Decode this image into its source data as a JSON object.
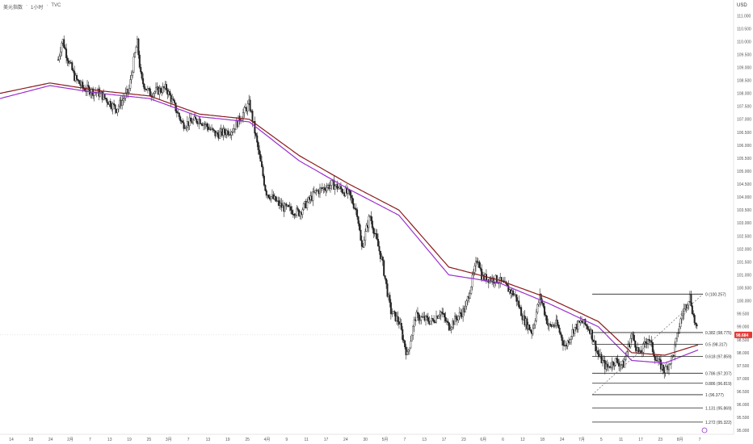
{
  "header": {
    "symbol": "美元指数",
    "dot1": "·",
    "interval": "1小时",
    "dot2": "·",
    "source": "TVC"
  },
  "currency": "USD",
  "current_price": "98.684",
  "colors": {
    "up": "#26a69a",
    "down": "#ef5350",
    "candle": "#222222",
    "ma_red": "#8b1a1a",
    "ma_purple": "#9b30d0",
    "fib": "#222222",
    "badge": "#e53935"
  },
  "chart_data": {
    "type": "candlestick",
    "title": "",
    "xlabel": "",
    "ylabel": "",
    "ylim": [
      94.85,
      111.6
    ],
    "y_ticks": [
      "111.000",
      "110.500",
      "110.000",
      "109.500",
      "109.000",
      "108.500",
      "108.000",
      "107.500",
      "107.000",
      "106.500",
      "106.000",
      "105.500",
      "105.000",
      "104.500",
      "104.000",
      "103.500",
      "103.000",
      "102.500",
      "102.000",
      "101.500",
      "101.000",
      "100.500",
      "100.000",
      "99.500",
      "99.000",
      "98.500",
      "98.000",
      "97.500",
      "97.000",
      "96.500",
      "96.000",
      "95.500",
      "95.000"
    ],
    "x_ticks": [
      "14",
      "18",
      "24",
      "2月",
      "7",
      "13",
      "19",
      "25",
      "3月",
      "7",
      "13",
      "19",
      "25",
      "4月",
      "9",
      "11",
      "17",
      "24",
      "30",
      "5月",
      "7",
      "13",
      "17",
      "23",
      "6月",
      "6",
      "12",
      "18",
      "24",
      "7月",
      "5",
      "11",
      "17",
      "23",
      "8月",
      "7"
    ],
    "price_path": [
      [
        14,
        109.3
      ],
      [
        15,
        110.1
      ],
      [
        16,
        109.5
      ],
      [
        18,
        108.6
      ],
      [
        20,
        108.2
      ],
      [
        24,
        108.0
      ],
      [
        28,
        107.4
      ],
      [
        31,
        108.1
      ],
      [
        33,
        110.0
      ],
      [
        34,
        108.5
      ],
      [
        36,
        108.0
      ],
      [
        40,
        108.2
      ],
      [
        44,
        106.8
      ],
      [
        48,
        107.0
      ],
      [
        52,
        106.4
      ],
      [
        56,
        106.6
      ],
      [
        60,
        107.6
      ],
      [
        61,
        106.8
      ],
      [
        64,
        104.2
      ],
      [
        68,
        103.6
      ],
      [
        72,
        103.4
      ],
      [
        76,
        104.2
      ],
      [
        80,
        104.5
      ],
      [
        84,
        104.1
      ],
      [
        86,
        103.4
      ],
      [
        87,
        102.0
      ],
      [
        89,
        103.3
      ],
      [
        92,
        101.5
      ],
      [
        94,
        99.6
      ],
      [
        96,
        99.2
      ],
      [
        98,
        97.9
      ],
      [
        100,
        99.4
      ],
      [
        104,
        99.2
      ],
      [
        106,
        99.6
      ],
      [
        108,
        99.0
      ],
      [
        112,
        99.7
      ],
      [
        115,
        101.7
      ],
      [
        116,
        100.9
      ],
      [
        120,
        100.8
      ],
      [
        124,
        100.2
      ],
      [
        126,
        99.3
      ],
      [
        128,
        98.8
      ],
      [
        130,
        100.2
      ],
      [
        132,
        99.0
      ],
      [
        134,
        99.1
      ],
      [
        136,
        98.2
      ],
      [
        138,
        98.9
      ],
      [
        140,
        99.2
      ],
      [
        142,
        98.9
      ],
      [
        144,
        97.9
      ],
      [
        146,
        97.4
      ],
      [
        148,
        97.7
      ],
      [
        150,
        97.5
      ],
      [
        152,
        98.7
      ],
      [
        154,
        97.9
      ],
      [
        156,
        98.6
      ],
      [
        158,
        97.7
      ],
      [
        160,
        97.3
      ],
      [
        162,
        97.9
      ],
      [
        164,
        99.4
      ],
      [
        166,
        100.2
      ],
      [
        167,
        99.3
      ],
      [
        168,
        98.68
      ]
    ],
    "ma_red": [
      [
        0,
        108.0
      ],
      [
        12,
        108.4
      ],
      [
        24,
        108.1
      ],
      [
        36,
        107.9
      ],
      [
        48,
        107.2
      ],
      [
        60,
        107.0
      ],
      [
        72,
        105.6
      ],
      [
        84,
        104.5
      ],
      [
        96,
        103.5
      ],
      [
        108,
        101.3
      ],
      [
        120,
        100.8
      ],
      [
        132,
        100.1
      ],
      [
        144,
        99.2
      ],
      [
        152,
        98.0
      ],
      [
        160,
        97.9
      ],
      [
        168,
        98.3
      ]
    ],
    "ma_purple": [
      [
        0,
        107.8
      ],
      [
        12,
        108.3
      ],
      [
        24,
        108.0
      ],
      [
        36,
        107.8
      ],
      [
        48,
        107.1
      ],
      [
        60,
        106.9
      ],
      [
        72,
        105.4
      ],
      [
        84,
        104.3
      ],
      [
        96,
        103.3
      ],
      [
        108,
        101.0
      ],
      [
        120,
        100.7
      ],
      [
        132,
        99.9
      ],
      [
        144,
        99.0
      ],
      [
        152,
        97.7
      ],
      [
        160,
        97.6
      ],
      [
        168,
        98.1
      ]
    ],
    "fib_levels": [
      {
        "ratio": "0",
        "label": "0 (100.257)",
        "value": 100.257
      },
      {
        "ratio": "0.382",
        "label": "0.382 (98.775)",
        "value": 98.775
      },
      {
        "ratio": "0.5",
        "label": "0.5 (98.317)",
        "value": 98.317
      },
      {
        "ratio": "0.618",
        "label": "0.618 (97.859)",
        "value": 97.859
      },
      {
        "ratio": "0.786",
        "label": "0.786 (97.207)",
        "value": 97.207
      },
      {
        "ratio": "0.886",
        "label": "0.886 (96.819)",
        "value": 96.819
      },
      {
        "ratio": "1",
        "label": "1 (96.377)",
        "value": 96.377
      },
      {
        "ratio": "1.131",
        "label": "1.131 (95.869)",
        "value": 95.869
      },
      {
        "ratio": "1.272",
        "label": "1.272 (95.322)",
        "value": 95.322
      }
    ]
  }
}
